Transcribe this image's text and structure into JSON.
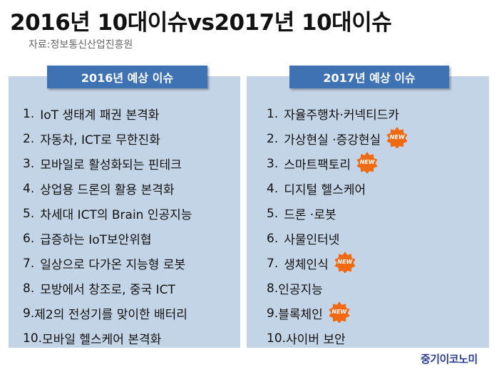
{
  "title": "2016년 10대이슈vs2017년 10대이슈",
  "source": "자료:정보통신산업진흥원",
  "left_panel": {
    "header": "2016년 예상 이슈",
    "items": [
      {
        "num": "1.",
        "text": "IoT 생태계 패권 본격화"
      },
      {
        "num": "2.",
        "text": "자동차, ICT로 무한진화"
      },
      {
        "num": "3.",
        "text": " 모바일로 활성화되는 핀테크"
      },
      {
        "num": "4.",
        "text": "상업용 드론의 활용 본격화"
      },
      {
        "num": "5.",
        "text": "차세대 ICT의 Brain 인공지능"
      },
      {
        "num": "6.",
        "text": "급증하는 IoT보안위협"
      },
      {
        "num": "7.",
        "text": "일상으로 다가온 지능형 로봇"
      },
      {
        "num": "8.",
        "text": "모방에서 창조로, 중국 ICT"
      },
      {
        "num": "9.",
        "text": "제2의 전성기를 맞이한 배터리"
      },
      {
        "num": "10.",
        "text": "모바일 헬스케어 본격화"
      }
    ]
  },
  "right_panel": {
    "header": "2017년 예상 이슈",
    "items": [
      {
        "num": "1.",
        "text": "자율주행차·커넥티드카",
        "is_new": false
      },
      {
        "num": "2.",
        "text": "가상현실 ·증강현실",
        "is_new": true
      },
      {
        "num": "3.",
        "text": "스마트팩토리",
        "is_new": true
      },
      {
        "num": "4.",
        "text": "디지털 헬스케어",
        "is_new": false
      },
      {
        "num": "5.",
        "text": "드론 ·로봇",
        "is_new": false
      },
      {
        "num": "6.",
        "text": "사물인터넷",
        "is_new": false
      },
      {
        "num": "7.",
        "text": "생체인식",
        "is_new": true
      },
      {
        "num": "8.",
        "text": "인공지능",
        "is_new": false
      },
      {
        "num": "9.",
        "text": "블록체인",
        "is_new": true
      },
      {
        "num": "10.",
        "text": "사이버 보안",
        "is_new": false
      }
    ]
  },
  "badge_label": "NEW",
  "logo": "중기이코노미",
  "colors": {
    "panel_bg": "#c3d4e6",
    "header_bg": "#3f72b3",
    "badge": "#f06a14",
    "logo": "#2a3f8f"
  }
}
